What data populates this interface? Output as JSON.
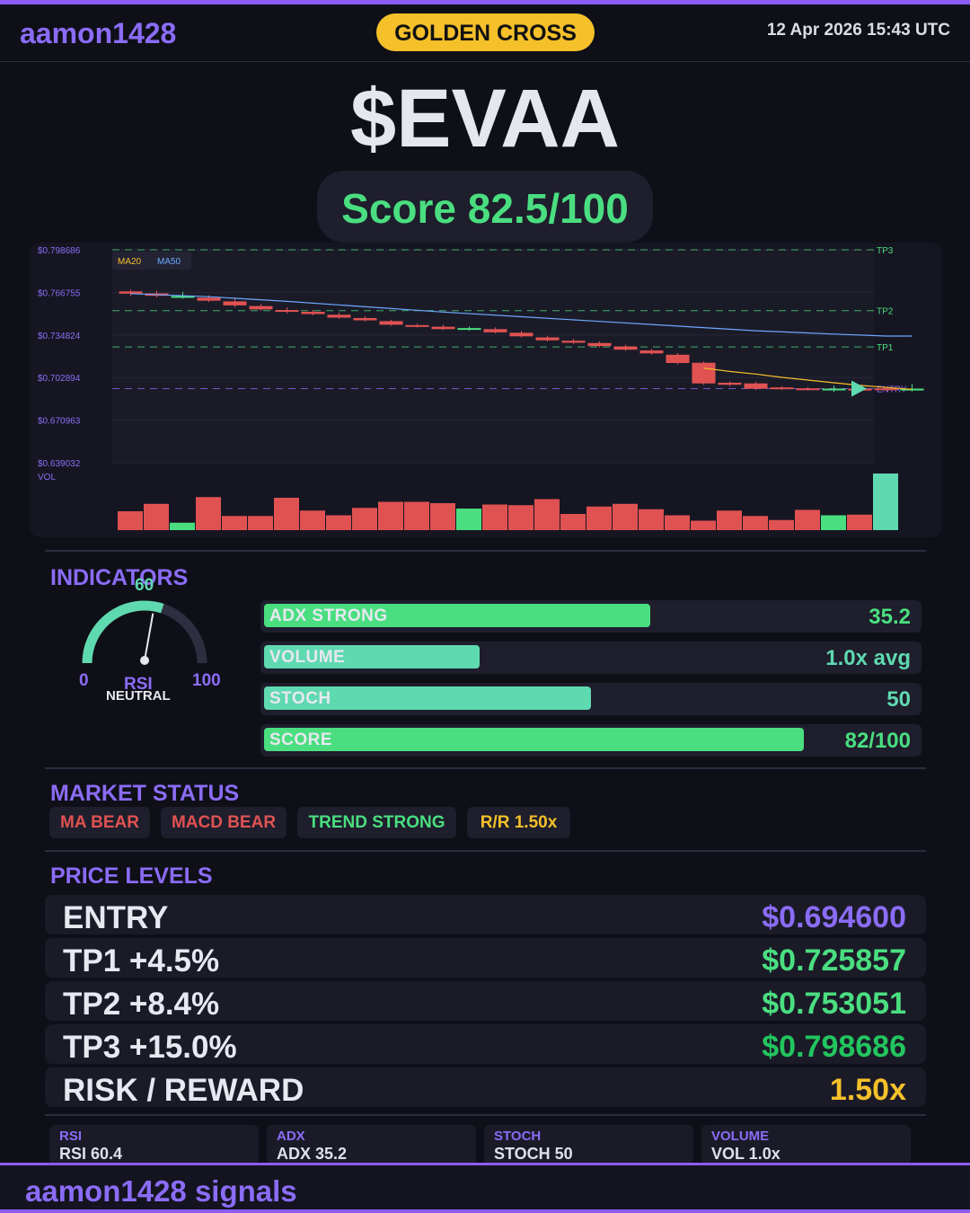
{
  "header": {
    "username": "aamon1428",
    "signal_badge": "GOLDEN CROSS",
    "datetime": "12 Apr 2026  15:43 UTC"
  },
  "ticker": "$EVAA",
  "score_text": "Score 82.5/100",
  "colors": {
    "accent": "#8b6cf6",
    "green": "#4ade80",
    "teal": "#5fd9b0",
    "red": "#e05252",
    "gold": "#f5c02a",
    "ma20": "#f5c02a",
    "ma50": "#6ea8ff"
  },
  "chart_data": {
    "type": "candlestick",
    "y_tick_labels": [
      "$0.798686",
      "$0.766755",
      "$0.734824",
      "$0.702894",
      "$0.670963",
      "$0.639032"
    ],
    "ylim": [
      0.639032,
      0.798686
    ],
    "legend": [
      "MA20",
      "MA50"
    ],
    "volume_label": "VOL",
    "levels": [
      {
        "name": "TP3",
        "value": 0.798686,
        "color": "#4ade80"
      },
      {
        "name": "TP2",
        "value": 0.753051,
        "color": "#4ade80"
      },
      {
        "name": "TP1",
        "value": 0.725857,
        "color": "#4ade80"
      },
      {
        "name": "ENTRY",
        "value": 0.6946,
        "color": "#8b6cf6"
      }
    ],
    "candles": [
      {
        "o": 0.7675,
        "c": 0.7658,
        "h": 0.769,
        "l": 0.764
      },
      {
        "o": 0.766,
        "c": 0.7642,
        "h": 0.768,
        "l": 0.763
      },
      {
        "o": 0.763,
        "c": 0.764,
        "h": 0.7672,
        "l": 0.762
      },
      {
        "o": 0.7628,
        "c": 0.7605,
        "h": 0.7645,
        "l": 0.7595
      },
      {
        "o": 0.76,
        "c": 0.757,
        "h": 0.7625,
        "l": 0.7555
      },
      {
        "o": 0.7565,
        "c": 0.754,
        "h": 0.758,
        "l": 0.753
      },
      {
        "o": 0.7535,
        "c": 0.7525,
        "h": 0.7555,
        "l": 0.751
      },
      {
        "o": 0.7522,
        "c": 0.7505,
        "h": 0.7535,
        "l": 0.7495
      },
      {
        "o": 0.75,
        "c": 0.7478,
        "h": 0.7515,
        "l": 0.747
      },
      {
        "o": 0.7475,
        "c": 0.7458,
        "h": 0.749,
        "l": 0.745
      },
      {
        "o": 0.7452,
        "c": 0.7425,
        "h": 0.7462,
        "l": 0.7418
      },
      {
        "o": 0.7422,
        "c": 0.7412,
        "h": 0.7432,
        "l": 0.7405
      },
      {
        "o": 0.741,
        "c": 0.7392,
        "h": 0.7425,
        "l": 0.7385
      },
      {
        "o": 0.7395,
        "c": 0.74,
        "h": 0.7412,
        "l": 0.738
      },
      {
        "o": 0.7392,
        "c": 0.7368,
        "h": 0.7405,
        "l": 0.736
      },
      {
        "o": 0.7365,
        "c": 0.7338,
        "h": 0.7378,
        "l": 0.733
      },
      {
        "o": 0.733,
        "c": 0.7308,
        "h": 0.7342,
        "l": 0.73
      },
      {
        "o": 0.7305,
        "c": 0.729,
        "h": 0.732,
        "l": 0.7282
      },
      {
        "o": 0.7288,
        "c": 0.7265,
        "h": 0.73,
        "l": 0.7255
      },
      {
        "o": 0.7262,
        "c": 0.7238,
        "h": 0.7275,
        "l": 0.723
      },
      {
        "o": 0.7232,
        "c": 0.721,
        "h": 0.7245,
        "l": 0.72
      },
      {
        "o": 0.72,
        "c": 0.7138,
        "h": 0.7212,
        "l": 0.7128
      },
      {
        "o": 0.714,
        "c": 0.6985,
        "h": 0.715,
        "l": 0.6975
      },
      {
        "o": 0.699,
        "c": 0.6975,
        "h": 0.7,
        "l": 0.6965
      },
      {
        "o": 0.6985,
        "c": 0.6945,
        "h": 0.6998,
        "l": 0.6935
      },
      {
        "o": 0.6955,
        "c": 0.6945,
        "h": 0.6965,
        "l": 0.6938
      },
      {
        "o": 0.6948,
        "c": 0.6938,
        "h": 0.6958,
        "l": 0.6932
      },
      {
        "o": 0.6938,
        "c": 0.6946,
        "h": 0.6968,
        "l": 0.692
      },
      {
        "o": 0.6945,
        "c": 0.694,
        "h": 0.6955,
        "l": 0.6932
      },
      {
        "o": 0.6948,
        "c": 0.6935,
        "h": 0.696,
        "l": 0.6928
      },
      {
        "o": 0.6932,
        "c": 0.6946,
        "h": 0.698,
        "l": 0.6925
      }
    ],
    "ma20": [
      [
        22,
        0.71
      ],
      [
        23,
        0.7075
      ],
      [
        24,
        0.7055
      ],
      [
        25,
        0.703
      ],
      [
        26,
        0.701
      ],
      [
        27,
        0.699
      ],
      [
        28,
        0.697
      ],
      [
        29,
        0.6955
      ],
      [
        30,
        0.694
      ]
    ],
    "ma50": [
      [
        0,
        0.7658
      ],
      [
        3,
        0.7635
      ],
      [
        6,
        0.76
      ],
      [
        9,
        0.756
      ],
      [
        12,
        0.752
      ],
      [
        15,
        0.7485
      ],
      [
        18,
        0.745
      ],
      [
        21,
        0.7415
      ],
      [
        24,
        0.738
      ],
      [
        27,
        0.7355
      ],
      [
        29,
        0.734
      ],
      [
        30,
        0.734
      ]
    ],
    "volumes": [
      0.28,
      0.39,
      0.11,
      0.49,
      0.21,
      0.21,
      0.48,
      0.29,
      0.22,
      0.33,
      0.42,
      0.42,
      0.4,
      0.32,
      0.38,
      0.37,
      0.46,
      0.24,
      0.35,
      0.39,
      0.31,
      0.22,
      0.14,
      0.29,
      0.21,
      0.15,
      0.3,
      0.22,
      0.23,
      0.84,
      0.0
    ]
  },
  "indicators": {
    "title": "INDICATORS",
    "gauge": {
      "value": "60",
      "min": "0",
      "max": "100",
      "label": "RSI",
      "state": "NEUTRAL"
    },
    "bars": [
      {
        "label": "ADX  STRONG",
        "value": "35.2",
        "fill": 0.59,
        "color": "#4ade80",
        "value_color": "#4ade80"
      },
      {
        "label": "VOLUME",
        "value": "1.0x avg",
        "fill": 0.33,
        "color": "#5fd9b0",
        "value_color": "#5fd9b0"
      },
      {
        "label": "STOCH",
        "value": "50",
        "fill": 0.5,
        "color": "#5fd9b0",
        "value_color": "#5fd9b0"
      },
      {
        "label": "SCORE",
        "value": "82/100",
        "fill": 0.825,
        "color": "#4ade80",
        "value_color": "#4ade80"
      }
    ]
  },
  "market_status": {
    "title": "MARKET STATUS",
    "badges": [
      {
        "label": "MA BEAR",
        "color": "#e05252"
      },
      {
        "label": "MACD BEAR",
        "color": "#e05252"
      },
      {
        "label": "TREND STRONG",
        "color": "#4ade80"
      },
      {
        "label": "R/R  1.50x",
        "color": "#f5c02a"
      }
    ]
  },
  "price_levels": {
    "title": "PRICE LEVELS",
    "rows": [
      {
        "label": "ENTRY",
        "value": "$0.694600",
        "color": "#8b6cf6"
      },
      {
        "label": "TP1  +4.5%",
        "value": "$0.725857",
        "color": "#4ade80"
      },
      {
        "label": "TP2  +8.4%",
        "value": "$0.753051",
        "color": "#4ade80"
      },
      {
        "label": "TP3  +15.0%",
        "value": "$0.798686",
        "color": "#22c55e"
      },
      {
        "label": "RISK / REWARD",
        "value": "1.50x",
        "color": "#f5c02a"
      }
    ]
  },
  "stats": [
    {
      "head": "RSI",
      "value": "RSI 60.4"
    },
    {
      "head": "ADX",
      "value": "ADX 35.2"
    },
    {
      "head": "STOCH",
      "value": "STOCH 50"
    },
    {
      "head": "VOLUME",
      "value": "VOL 1.0x"
    }
  ],
  "footer": "aamon1428 signals"
}
